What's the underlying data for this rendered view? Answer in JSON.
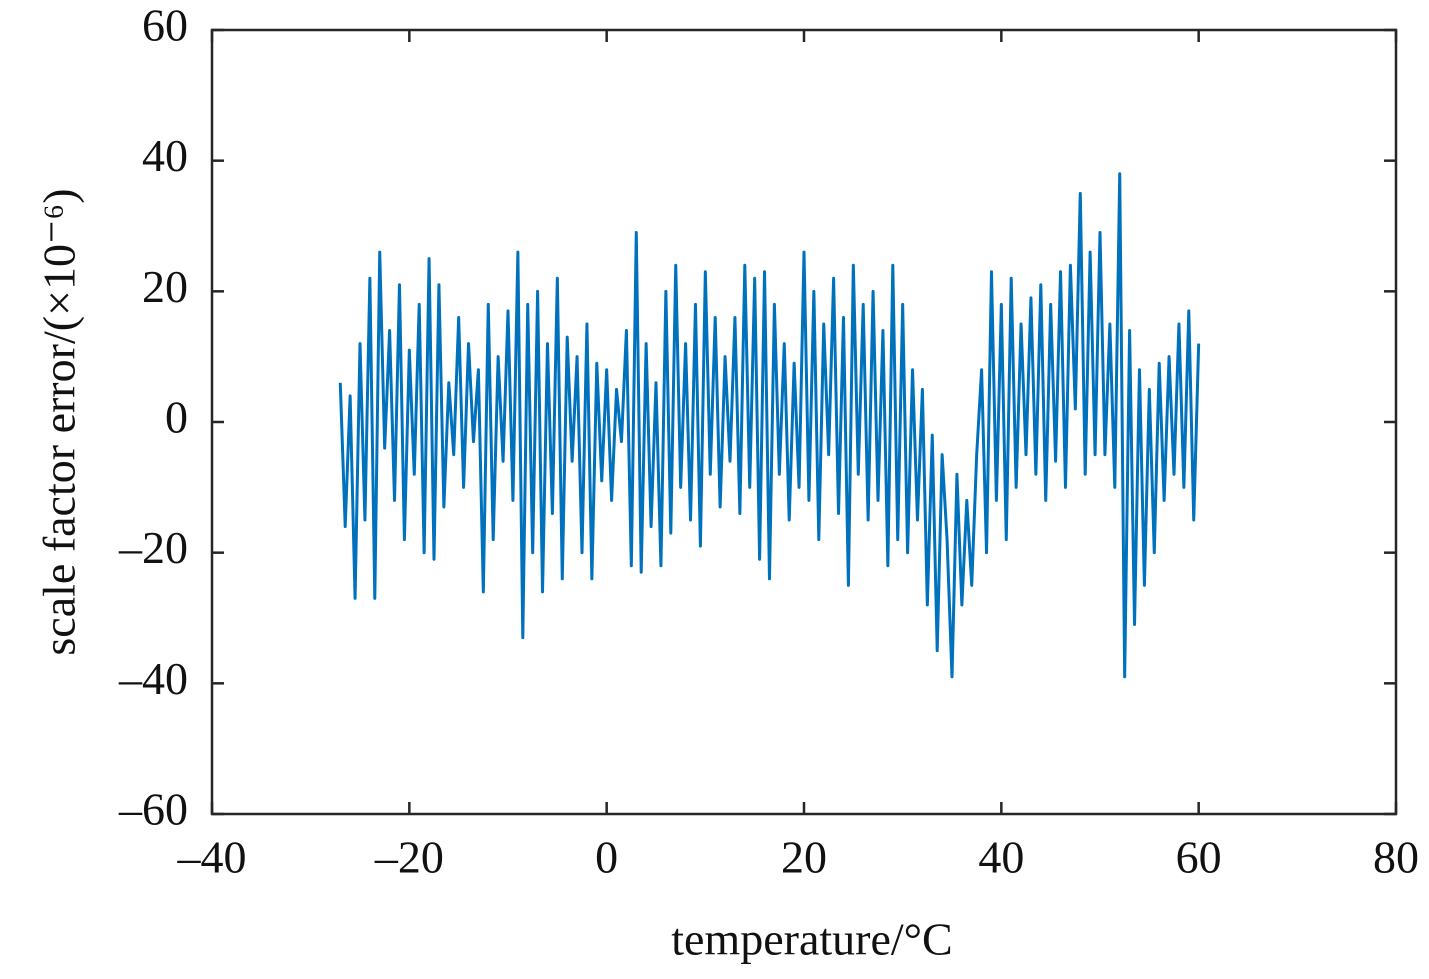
{
  "chart_data": {
    "type": "line",
    "xlabel": "temperature/°C",
    "ylabel": "scale factor error/(×10⁻⁶)",
    "xlim": [
      -40,
      80
    ],
    "xticks": [
      {
        "value": -40,
        "label": "–40"
      },
      {
        "value": -20,
        "label": "–20"
      },
      0,
      20,
      40,
      60,
      80
    ],
    "ylim": [
      -60,
      60
    ],
    "yticks": [
      {
        "value": -60,
        "label": "–60"
      },
      {
        "value": -40,
        "label": "–40"
      },
      {
        "value": -20,
        "label": "–20"
      },
      0,
      20,
      40,
      60
    ],
    "x": [
      -27,
      -26.5,
      -26,
      -25.5,
      -25,
      -24.5,
      -24,
      -23.5,
      -23,
      -22.5,
      -22,
      -21.5,
      -21,
      -20.5,
      -20,
      -19.5,
      -19,
      -18.5,
      -18,
      -17.5,
      -17,
      -16.5,
      -16,
      -15.5,
      -15,
      -14.5,
      -14,
      -13.5,
      -13,
      -12.5,
      -12,
      -11.5,
      -11,
      -10.5,
      -10,
      -9.5,
      -9,
      -8.5,
      -8,
      -7.5,
      -7,
      -6.5,
      -6,
      -5.5,
      -5,
      -4.5,
      -4,
      -3.5,
      -3,
      -2.5,
      -2,
      -1.5,
      -1,
      -0.5,
      0,
      0.5,
      1,
      1.5,
      2,
      2.5,
      3,
      3.5,
      4,
      4.5,
      5,
      5.5,
      6,
      6.5,
      7,
      7.5,
      8,
      8.5,
      9,
      9.5,
      10,
      10.5,
      11,
      11.5,
      12,
      12.5,
      13,
      13.5,
      14,
      14.5,
      15,
      15.5,
      16,
      16.5,
      17,
      17.5,
      18,
      18.5,
      19,
      19.5,
      20,
      20.5,
      21,
      21.5,
      22,
      22.5,
      23,
      23.5,
      24,
      24.5,
      25,
      25.5,
      26,
      26.5,
      27,
      27.5,
      28,
      28.5,
      29,
      29.5,
      30,
      30.5,
      31,
      31.5,
      32,
      32.5,
      33,
      33.5,
      34,
      34.5,
      35,
      35.5,
      36,
      36.5,
      37,
      37.5,
      38,
      38.5,
      39,
      39.5,
      40,
      40.5,
      41,
      41.5,
      42,
      42.5,
      43,
      43.5,
      44,
      44.5,
      45,
      45.5,
      46,
      46.5,
      47,
      47.5,
      48,
      48.5,
      49,
      49.5,
      50,
      50.5,
      51,
      51.5,
      52,
      52.5,
      53,
      53.5,
      54,
      54.5,
      55,
      55.5,
      56,
      56.5,
      57,
      57.5,
      58,
      58.5,
      59,
      59.5,
      60
    ],
    "series": [
      {
        "color": "#0072bd",
        "values": [
          6,
          -16,
          4,
          -27,
          12,
          -15,
          22,
          -27,
          26,
          -4,
          14,
          -12,
          21,
          -18,
          11,
          -8,
          18,
          -20,
          25,
          -21,
          21,
          -13,
          6,
          -5,
          16,
          -10,
          12,
          -3,
          8,
          -26,
          18,
          -18,
          10,
          -6,
          17,
          -12,
          26,
          -33,
          18,
          -20,
          20,
          -26,
          12,
          -14,
          22,
          -24,
          13,
          -6,
          10,
          -20,
          15,
          -24,
          9,
          -9,
          8,
          -12,
          5,
          -3,
          14,
          -22,
          29,
          -23,
          12,
          -16,
          6,
          -22,
          20,
          -17,
          24,
          -10,
          12,
          -15,
          18,
          -19,
          23,
          -8,
          16,
          -13,
          10,
          -6,
          16,
          -14,
          24,
          -10,
          22,
          -21,
          23,
          -24,
          18,
          -8,
          12,
          -15,
          9,
          -10,
          26,
          -12,
          20,
          -18,
          15,
          -5,
          22,
          -14,
          16,
          -25,
          24,
          -8,
          18,
          -15,
          20,
          -12,
          14,
          -22,
          24,
          -18,
          18,
          -20,
          8,
          -15,
          5,
          -28,
          -2,
          -35,
          -5,
          -18,
          -39,
          -8,
          -28,
          -12,
          -25,
          -5,
          8,
          -20,
          23,
          -12,
          18,
          -18,
          22,
          -10,
          15,
          -5,
          19,
          -8,
          21,
          -12,
          18,
          -6,
          23,
          -10,
          24,
          2,
          35,
          -8,
          26,
          -5,
          29,
          -5,
          15,
          -10,
          38,
          -39,
          14,
          -31,
          8,
          -25,
          5,
          -20,
          9,
          -12,
          10,
          -8,
          15,
          -10,
          17,
          -15,
          12
        ]
      }
    ]
  }
}
